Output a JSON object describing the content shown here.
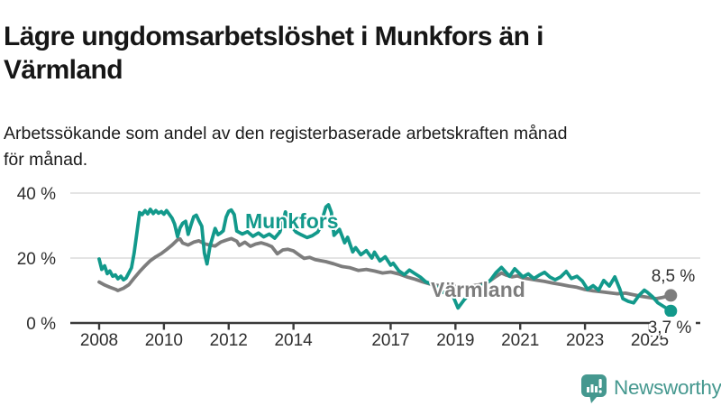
{
  "header": {
    "title": "Lägre ungdomsarbetslöshet i Munkfors än i Värmland",
    "title_lines": [
      "Lägre ungdomsarbetslöshet i Munkfors än i",
      "Värmland"
    ],
    "subtitle": "Arbetssökande som andel av den registerbaserade arbetskraften månad för månad.",
    "subtitle_lines": [
      "Arbetssökande som andel av den registerbaserade arbetskraften månad",
      "för månad."
    ]
  },
  "footer": {
    "brand": "Newsworthy",
    "icon": "bar-chart-speech-bubble-icon",
    "brand_color": "#45988f"
  },
  "colors": {
    "munkfors_line": "#12998b",
    "varmland_line": "#7d7d7d",
    "axis": "#3a3a3a",
    "grid": "#dcdcdc",
    "text": "#161616",
    "tick_label": "#2e2e2e"
  },
  "chart_data": {
    "type": "line",
    "title": "Lägre ungdomsarbetslöshet i Munkfors än i Värmland",
    "subtitle": "Arbetssökande som andel av den registerbaserade arbetskraften månad för månad.",
    "xlabel": "",
    "ylabel": "",
    "xlim": [
      2007.1,
      2026.6
    ],
    "ylim": [
      0,
      42
    ],
    "grid": "horizontal",
    "legend_position": "inline-labels",
    "x_ticks": [
      2008,
      2010,
      2012,
      2014,
      2017,
      2019,
      2021,
      2023,
      2025
    ],
    "y_ticks": [
      {
        "value": 0,
        "label": "0 %"
      },
      {
        "value": 20,
        "label": "20 %"
      },
      {
        "value": 40,
        "label": "40 %"
      }
    ],
    "series": [
      {
        "name": "Värmland",
        "color": "#7d7d7d",
        "end_label": "8,5 %",
        "end_value": 8.5,
        "points": [
          [
            2008.0,
            12.6
          ],
          [
            2008.17,
            11.7
          ],
          [
            2008.33,
            11.0
          ],
          [
            2008.5,
            10.4
          ],
          [
            2008.58,
            10.0
          ],
          [
            2008.75,
            10.7
          ],
          [
            2008.92,
            11.8
          ],
          [
            2009.08,
            13.8
          ],
          [
            2009.25,
            15.8
          ],
          [
            2009.42,
            17.6
          ],
          [
            2009.58,
            19.2
          ],
          [
            2009.75,
            20.4
          ],
          [
            2009.92,
            21.4
          ],
          [
            2010.08,
            22.6
          ],
          [
            2010.25,
            24.0
          ],
          [
            2010.42,
            25.6
          ],
          [
            2010.5,
            25.9
          ],
          [
            2010.58,
            24.6
          ],
          [
            2010.75,
            24.0
          ],
          [
            2010.92,
            24.9
          ],
          [
            2011.08,
            25.3
          ],
          [
            2011.25,
            24.4
          ],
          [
            2011.42,
            24.0
          ],
          [
            2011.58,
            23.7
          ],
          [
            2011.75,
            24.9
          ],
          [
            2011.92,
            25.5
          ],
          [
            2012.08,
            26.0
          ],
          [
            2012.25,
            25.2
          ],
          [
            2012.33,
            23.9
          ],
          [
            2012.5,
            24.9
          ],
          [
            2012.67,
            23.6
          ],
          [
            2012.83,
            24.3
          ],
          [
            2013.0,
            24.7
          ],
          [
            2013.17,
            24.2
          ],
          [
            2013.33,
            23.5
          ],
          [
            2013.5,
            21.3
          ],
          [
            2013.67,
            22.5
          ],
          [
            2013.83,
            22.7
          ],
          [
            2014.0,
            22.2
          ],
          [
            2014.17,
            21.0
          ],
          [
            2014.33,
            19.9
          ],
          [
            2014.5,
            20.2
          ],
          [
            2014.67,
            19.5
          ],
          [
            2014.83,
            19.2
          ],
          [
            2015.0,
            18.9
          ],
          [
            2015.25,
            18.2
          ],
          [
            2015.5,
            17.4
          ],
          [
            2015.75,
            17.0
          ],
          [
            2016.0,
            16.2
          ],
          [
            2016.25,
            16.5
          ],
          [
            2016.5,
            16.0
          ],
          [
            2016.75,
            15.4
          ],
          [
            2017.0,
            15.7
          ],
          [
            2017.25,
            15.1
          ],
          [
            2017.5,
            14.2
          ],
          [
            2017.75,
            13.5
          ],
          [
            2018.0,
            12.6
          ],
          [
            2018.25,
            11.9
          ],
          [
            2018.5,
            11.5
          ],
          [
            2018.75,
            11.1
          ],
          [
            2019.0,
            11.3
          ],
          [
            2019.25,
            11.0
          ],
          [
            2019.5,
            11.4
          ],
          [
            2019.75,
            11.8
          ],
          [
            2020.0,
            12.5
          ],
          [
            2020.25,
            14.3
          ],
          [
            2020.42,
            15.4
          ],
          [
            2020.58,
            14.7
          ],
          [
            2020.75,
            14.2
          ],
          [
            2020.92,
            14.5
          ],
          [
            2021.08,
            13.9
          ],
          [
            2021.25,
            13.6
          ],
          [
            2021.5,
            13.2
          ],
          [
            2021.75,
            12.8
          ],
          [
            2022.0,
            12.3
          ],
          [
            2022.25,
            11.9
          ],
          [
            2022.5,
            11.4
          ],
          [
            2022.75,
            11.0
          ],
          [
            2023.0,
            10.3
          ],
          [
            2023.25,
            9.9
          ],
          [
            2023.5,
            9.6
          ],
          [
            2023.75,
            9.3
          ],
          [
            2024.0,
            9.0
          ],
          [
            2024.25,
            9.2
          ],
          [
            2024.5,
            8.7
          ],
          [
            2024.75,
            8.2
          ],
          [
            2025.0,
            7.8
          ],
          [
            2025.2,
            7.5
          ],
          [
            2025.4,
            7.9
          ],
          [
            2025.65,
            8.5
          ]
        ]
      },
      {
        "name": "Munkfors",
        "color": "#12998b",
        "end_label": "3,7 %",
        "end_value": 3.7,
        "points": [
          [
            2008.0,
            19.7
          ],
          [
            2008.08,
            16.5
          ],
          [
            2008.17,
            17.6
          ],
          [
            2008.25,
            15.2
          ],
          [
            2008.33,
            16.0
          ],
          [
            2008.42,
            14.4
          ],
          [
            2008.5,
            14.8
          ],
          [
            2008.58,
            13.6
          ],
          [
            2008.67,
            14.4
          ],
          [
            2008.75,
            13.3
          ],
          [
            2008.83,
            13.8
          ],
          [
            2008.92,
            15.5
          ],
          [
            2009.0,
            17.0
          ],
          [
            2009.08,
            21.5
          ],
          [
            2009.17,
            28.0
          ],
          [
            2009.25,
            34.0
          ],
          [
            2009.33,
            33.4
          ],
          [
            2009.42,
            34.6
          ],
          [
            2009.5,
            33.6
          ],
          [
            2009.58,
            35.0
          ],
          [
            2009.67,
            33.7
          ],
          [
            2009.75,
            34.6
          ],
          [
            2009.83,
            33.8
          ],
          [
            2009.92,
            34.3
          ],
          [
            2010.0,
            33.5
          ],
          [
            2010.08,
            34.6
          ],
          [
            2010.17,
            33.4
          ],
          [
            2010.25,
            32.3
          ],
          [
            2010.33,
            30.5
          ],
          [
            2010.42,
            26.6
          ],
          [
            2010.5,
            29.3
          ],
          [
            2010.58,
            30.7
          ],
          [
            2010.67,
            31.3
          ],
          [
            2010.75,
            27.3
          ],
          [
            2010.83,
            30.0
          ],
          [
            2010.92,
            32.7
          ],
          [
            2011.0,
            33.2
          ],
          [
            2011.08,
            31.5
          ],
          [
            2011.17,
            29.8
          ],
          [
            2011.25,
            21.5
          ],
          [
            2011.33,
            18.2
          ],
          [
            2011.42,
            23.5
          ],
          [
            2011.5,
            26.3
          ],
          [
            2011.58,
            29.1
          ],
          [
            2011.67,
            27.2
          ],
          [
            2011.75,
            27.7
          ],
          [
            2011.83,
            28.4
          ],
          [
            2011.92,
            32.6
          ],
          [
            2012.0,
            34.4
          ],
          [
            2012.08,
            34.8
          ],
          [
            2012.17,
            33.4
          ],
          [
            2012.25,
            28.3
          ],
          [
            2012.42,
            27.4
          ],
          [
            2012.58,
            28.1
          ],
          [
            2012.75,
            26.7
          ],
          [
            2012.92,
            27.7
          ],
          [
            2013.08,
            26.5
          ],
          [
            2013.25,
            27.4
          ],
          [
            2013.42,
            26.1
          ],
          [
            2013.58,
            28.0
          ],
          [
            2013.67,
            31.0
          ],
          [
            2013.75,
            34.2
          ],
          [
            2013.83,
            32.5
          ],
          [
            2013.92,
            30.0
          ],
          [
            2014.08,
            28.0
          ],
          [
            2014.25,
            27.1
          ],
          [
            2014.42,
            26.3
          ],
          [
            2014.58,
            26.9
          ],
          [
            2014.75,
            28.0
          ],
          [
            2014.83,
            29.5
          ],
          [
            2014.92,
            33.0
          ],
          [
            2015.0,
            35.7
          ],
          [
            2015.08,
            36.4
          ],
          [
            2015.17,
            34.0
          ],
          [
            2015.25,
            27.0
          ],
          [
            2015.42,
            28.8
          ],
          [
            2015.58,
            24.7
          ],
          [
            2015.67,
            26.4
          ],
          [
            2015.83,
            21.9
          ],
          [
            2015.92,
            23.2
          ],
          [
            2016.08,
            21.0
          ],
          [
            2016.25,
            22.3
          ],
          [
            2016.42,
            20.0
          ],
          [
            2016.5,
            21.8
          ],
          [
            2016.67,
            19.1
          ],
          [
            2016.83,
            20.4
          ],
          [
            2017.0,
            17.8
          ],
          [
            2017.08,
            18.4
          ],
          [
            2017.25,
            16.1
          ],
          [
            2017.42,
            14.9
          ],
          [
            2017.58,
            16.3
          ],
          [
            2017.75,
            15.2
          ],
          [
            2017.92,
            14.1
          ],
          [
            2018.08,
            12.7
          ],
          [
            2018.25,
            12.0
          ],
          [
            2018.42,
            11.1
          ],
          [
            2018.58,
            9.7
          ],
          [
            2018.75,
            8.9
          ],
          [
            2018.92,
            8.4
          ],
          [
            2019.08,
            4.6
          ],
          [
            2019.25,
            6.9
          ],
          [
            2019.42,
            8.9
          ],
          [
            2019.58,
            10.1
          ],
          [
            2019.75,
            11.2
          ],
          [
            2019.92,
            12.0
          ],
          [
            2020.08,
            13.2
          ],
          [
            2020.25,
            15.5
          ],
          [
            2020.42,
            17.1
          ],
          [
            2020.58,
            15.4
          ],
          [
            2020.67,
            14.4
          ],
          [
            2020.83,
            16.7
          ],
          [
            2020.92,
            15.8
          ],
          [
            2021.08,
            14.2
          ],
          [
            2021.25,
            15.1
          ],
          [
            2021.42,
            13.7
          ],
          [
            2021.58,
            14.7
          ],
          [
            2021.75,
            15.6
          ],
          [
            2021.92,
            14.1
          ],
          [
            2022.08,
            13.3
          ],
          [
            2022.25,
            14.2
          ],
          [
            2022.42,
            15.9
          ],
          [
            2022.58,
            13.7
          ],
          [
            2022.75,
            14.4
          ],
          [
            2022.92,
            12.9
          ],
          [
            2023.08,
            10.4
          ],
          [
            2023.25,
            11.5
          ],
          [
            2023.42,
            10.1
          ],
          [
            2023.58,
            13.1
          ],
          [
            2023.75,
            11.4
          ],
          [
            2023.92,
            14.2
          ],
          [
            2024.08,
            10.3
          ],
          [
            2024.17,
            7.5
          ],
          [
            2024.33,
            6.7
          ],
          [
            2024.5,
            6.2
          ],
          [
            2024.67,
            8.5
          ],
          [
            2024.83,
            10.1
          ],
          [
            2024.92,
            9.5
          ],
          [
            2025.08,
            8.1
          ],
          [
            2025.25,
            6.2
          ],
          [
            2025.65,
            3.7
          ]
        ]
      }
    ]
  }
}
